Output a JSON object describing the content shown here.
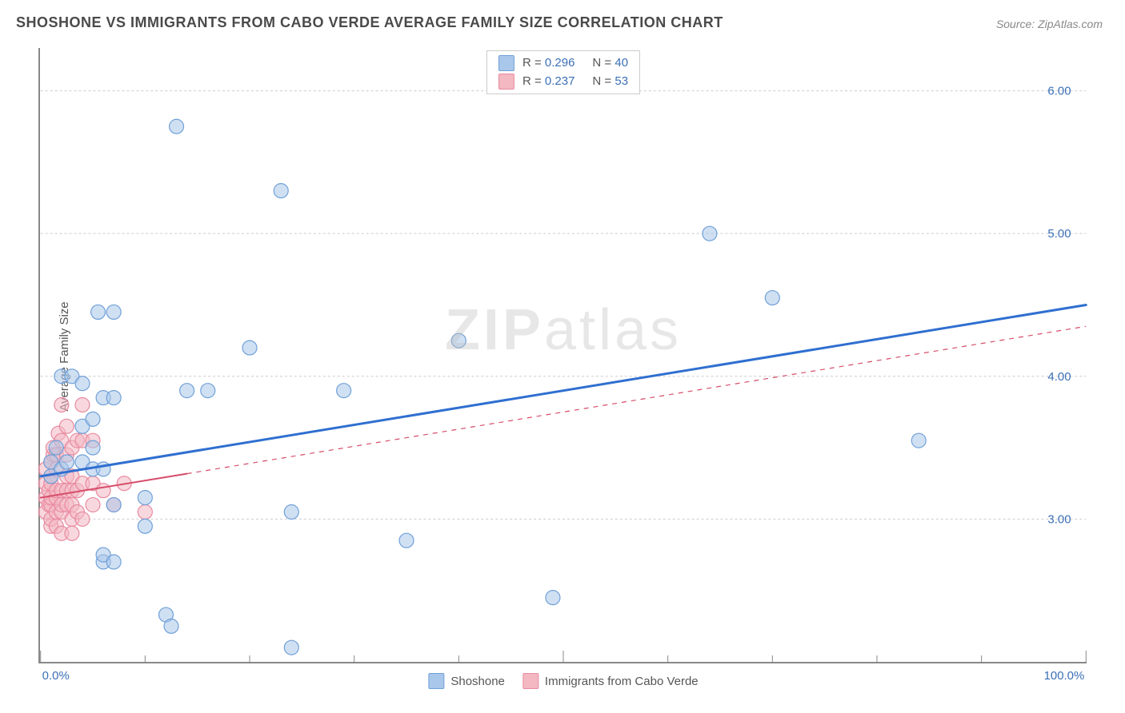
{
  "title": "SHOSHONE VS IMMIGRANTS FROM CABO VERDE AVERAGE FAMILY SIZE CORRELATION CHART",
  "source": "Source: ZipAtlas.com",
  "ylabel": "Average Family Size",
  "watermark_bold": "ZIP",
  "watermark_rest": "atlas",
  "chart": {
    "type": "scatter",
    "xlim": [
      0,
      100
    ],
    "ylim": [
      2.0,
      6.3
    ],
    "y_ticks": [
      3.0,
      4.0,
      5.0,
      6.0
    ],
    "x_ticks_major": [
      0,
      50,
      100
    ],
    "x_tick_labels": {
      "0": "0.0%",
      "100": "100.0%"
    },
    "x_minor_ticks": [
      10,
      20,
      30,
      40,
      60,
      70,
      80,
      90
    ],
    "background_color": "#ffffff",
    "grid_color": "#cccccc",
    "axis_color": "#888888",
    "marker_radius": 9,
    "marker_stroke_width": 1.2,
    "series": [
      {
        "name": "Shoshone",
        "color_fill": "#a9c7ea",
        "color_stroke": "#6fa0d8",
        "fill_opacity": 0.55,
        "R": "0.296",
        "N": "40",
        "trend": {
          "x1": 0,
          "y1": 3.3,
          "x2": 100,
          "y2": 4.5,
          "solid_to_x": 100,
          "width": 3,
          "color": "#2f6fd0"
        },
        "points": [
          [
            1,
            3.4
          ],
          [
            1,
            3.3
          ],
          [
            1.5,
            3.5
          ],
          [
            2,
            3.35
          ],
          [
            2.5,
            3.4
          ],
          [
            2,
            4.0
          ],
          [
            3,
            4.0
          ],
          [
            4,
            3.4
          ],
          [
            4,
            3.65
          ],
          [
            4,
            3.95
          ],
          [
            5,
            3.35
          ],
          [
            5,
            3.5
          ],
          [
            5,
            3.7
          ],
          [
            5.5,
            4.45
          ],
          [
            6,
            3.35
          ],
          [
            6,
            3.85
          ],
          [
            7,
            3.1
          ],
          [
            7,
            3.85
          ],
          [
            7,
            4.45
          ],
          [
            6,
            2.7
          ],
          [
            6,
            2.75
          ],
          [
            7,
            2.7
          ],
          [
            10,
            2.95
          ],
          [
            12,
            2.33
          ],
          [
            12.5,
            2.25
          ],
          [
            13,
            5.75
          ],
          [
            14,
            3.9
          ],
          [
            16,
            3.9
          ],
          [
            20,
            4.2
          ],
          [
            23,
            5.3
          ],
          [
            24,
            3.05
          ],
          [
            24,
            2.1
          ],
          [
            29,
            3.9
          ],
          [
            35,
            2.85
          ],
          [
            40,
            4.25
          ],
          [
            49,
            2.45
          ],
          [
            64,
            5.0
          ],
          [
            70,
            4.55
          ],
          [
            84,
            3.55
          ],
          [
            10,
            3.15
          ]
        ]
      },
      {
        "name": "Immigrants from Cabo Verde",
        "color_fill": "#f3b8c2",
        "color_stroke": "#e98aa0",
        "fill_opacity": 0.55,
        "R": "0.237",
        "N": "53",
        "trend": {
          "x1": 0,
          "y1": 3.15,
          "x2": 100,
          "y2": 4.35,
          "solid_to_x": 14,
          "width": 2,
          "color": "#d64d6a"
        },
        "points": [
          [
            0.5,
            3.05
          ],
          [
            0.5,
            3.15
          ],
          [
            0.5,
            3.25
          ],
          [
            0.5,
            3.35
          ],
          [
            0.8,
            3.1
          ],
          [
            0.8,
            3.2
          ],
          [
            1,
            2.95
          ],
          [
            1,
            3.0
          ],
          [
            1,
            3.1
          ],
          [
            1,
            3.15
          ],
          [
            1,
            3.25
          ],
          [
            1,
            3.3
          ],
          [
            1,
            3.4
          ],
          [
            1.2,
            3.45
          ],
          [
            1.2,
            3.5
          ],
          [
            1.5,
            2.95
          ],
          [
            1.5,
            3.05
          ],
          [
            1.5,
            3.15
          ],
          [
            1.5,
            3.2
          ],
          [
            1.5,
            3.35
          ],
          [
            1.5,
            3.45
          ],
          [
            1.7,
            3.6
          ],
          [
            2,
            2.9
          ],
          [
            2,
            3.05
          ],
          [
            2,
            3.1
          ],
          [
            2,
            3.2
          ],
          [
            2,
            3.55
          ],
          [
            2,
            3.8
          ],
          [
            2.5,
            3.1
          ],
          [
            2.5,
            3.2
          ],
          [
            2.5,
            3.3
          ],
          [
            2.5,
            3.45
          ],
          [
            2.5,
            3.65
          ],
          [
            3,
            2.9
          ],
          [
            3,
            3.0
          ],
          [
            3,
            3.1
          ],
          [
            3,
            3.2
          ],
          [
            3,
            3.3
          ],
          [
            3,
            3.5
          ],
          [
            3.5,
            3.05
          ],
          [
            3.5,
            3.2
          ],
          [
            3.5,
            3.55
          ],
          [
            4,
            3.0
          ],
          [
            4,
            3.25
          ],
          [
            4,
            3.55
          ],
          [
            4,
            3.8
          ],
          [
            5,
            3.25
          ],
          [
            5,
            3.1
          ],
          [
            5,
            3.55
          ],
          [
            6,
            3.2
          ],
          [
            7,
            3.1
          ],
          [
            8,
            3.25
          ],
          [
            10,
            3.05
          ]
        ]
      }
    ],
    "legend_top": {
      "rows": [
        {
          "swatch_fill": "#a9c7ea",
          "swatch_stroke": "#6fa0d8",
          "r_label": "R =",
          "r_val": "0.296",
          "n_label": "N =",
          "n_val": "40"
        },
        {
          "swatch_fill": "#f3b8c2",
          "swatch_stroke": "#e98aa0",
          "r_label": "R =",
          "r_val": "0.237",
          "n_label": "N =",
          "n_val": "53"
        }
      ]
    },
    "legend_bottom": {
      "items": [
        {
          "swatch_fill": "#a9c7ea",
          "swatch_stroke": "#6fa0d8",
          "label": "Shoshone"
        },
        {
          "swatch_fill": "#f3b8c2",
          "swatch_stroke": "#e98aa0",
          "label": "Immigrants from Cabo Verde"
        }
      ]
    }
  }
}
